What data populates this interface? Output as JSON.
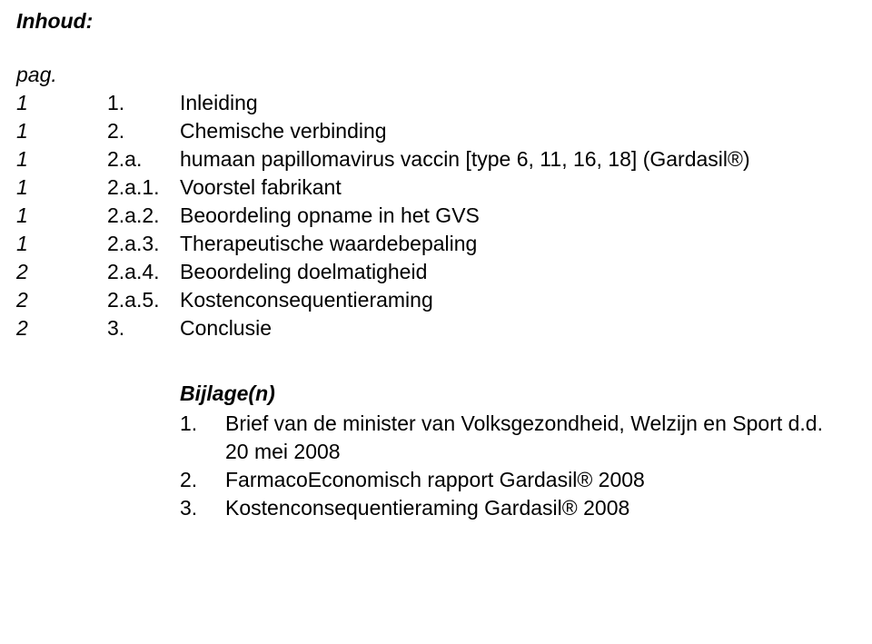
{
  "heading": "Inhoud:",
  "pag_label": "pag.",
  "toc": [
    {
      "page": "1",
      "num": "1.",
      "text": "Inleiding"
    },
    {
      "page": "1",
      "num": "2.",
      "text": "Chemische verbinding"
    },
    {
      "page": "1",
      "num": "2.a.",
      "text": "humaan papillomavirus vaccin [type 6, 11, 16, 18] (Gardasil®)"
    },
    {
      "page": "1",
      "num": "2.a.1.",
      "text": "Voorstel fabrikant"
    },
    {
      "page": "1",
      "num": "2.a.2.",
      "text": "Beoordeling opname in het GVS"
    },
    {
      "page": "1",
      "num": "2.a.3.",
      "text": "Therapeutische waardebepaling"
    },
    {
      "page": "2",
      "num": "2.a.4.",
      "text": "Beoordeling doelmatigheid"
    },
    {
      "page": "2",
      "num": "2.a.5.",
      "text": "Kostenconsequentieraming"
    },
    {
      "page": "2",
      "num": "3.",
      "text": "Conclusie"
    }
  ],
  "attachments_heading": "Bijlage(n)",
  "attachments": [
    {
      "num": "1.",
      "text": "Brief van de minister van Volksgezondheid, Welzijn en Sport d.d. 20 mei 2008"
    },
    {
      "num": "2.",
      "text": "FarmacoEconomisch rapport Gardasil® 2008"
    },
    {
      "num": "3.",
      "text": "Kostenconsequentieraming Gardasil® 2008"
    }
  ],
  "colors": {
    "text": "#000000",
    "background": "#ffffff"
  },
  "fontsize_pt": 17
}
